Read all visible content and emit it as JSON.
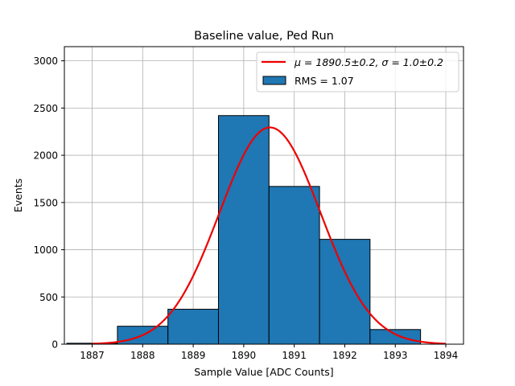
{
  "chart_data": {
    "type": "bar",
    "title": "Baseline value, Ped Run",
    "xlabel": "Sample Value [ADC Counts]",
    "ylabel": "Events",
    "xlim": [
      1886.45,
      1894.35
    ],
    "ylim": [
      0,
      3150
    ],
    "xticks": [
      1887,
      1888,
      1889,
      1890,
      1891,
      1892,
      1893,
      1894
    ],
    "yticks": [
      0,
      500,
      1000,
      1500,
      2000,
      2500,
      3000
    ],
    "grid": true,
    "legend_position": "top-right",
    "histogram": {
      "name": "RMS = 1.07",
      "color": "#1f77b4",
      "bins": [
        {
          "left": 1886.5,
          "right": 1887.5,
          "count": 10
        },
        {
          "left": 1887.5,
          "right": 1888.5,
          "count": 190
        },
        {
          "left": 1888.5,
          "right": 1889.5,
          "count": 370
        },
        {
          "left": 1889.5,
          "right": 1890.5,
          "count": 2420
        },
        {
          "left": 1890.5,
          "right": 1891.5,
          "count": 1670
        },
        {
          "left": 1891.5,
          "right": 1892.5,
          "count": 1110
        },
        {
          "left": 1892.5,
          "right": 1893.5,
          "count": 155
        }
      ]
    },
    "fit": {
      "type": "gaussian",
      "label_mu": "μ = 1890.5±0.2, ",
      "label_sigma": "σ = 1.0±0.2",
      "color": "#ee0000",
      "mu": 1890.52,
      "sigma": 1.0,
      "amplitude": 2295,
      "x_range": [
        1887.0,
        1894.0
      ]
    },
    "legend": [
      {
        "kind": "line",
        "series": "fit"
      },
      {
        "kind": "patch",
        "label": "RMS = 1.07"
      }
    ]
  }
}
